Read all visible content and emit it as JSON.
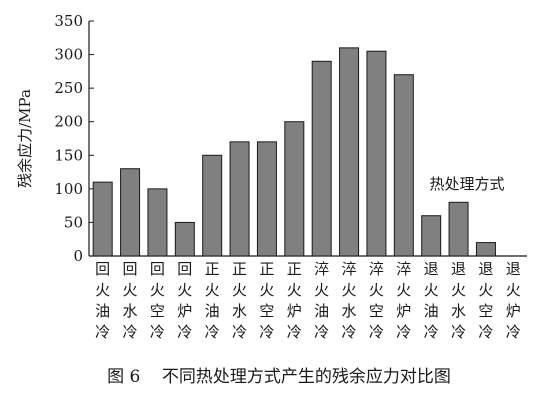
{
  "caption": "图 6    不同热处理方式产生的残余应力对比图",
  "chart_data": {
    "type": "bar",
    "ylabel": "残余应力/MPa",
    "legend_label": "热处理方式",
    "ylim": [
      0,
      350
    ],
    "yticks": [
      0,
      50,
      100,
      150,
      200,
      250,
      300,
      350
    ],
    "grid": false,
    "categories": [
      "回火油冷",
      "回火水冷",
      "回火空冷",
      "回火炉冷",
      "正火油冷",
      "正火水冷",
      "正火空冷",
      "正火炉冷",
      "淬火油冷",
      "淬火水冷",
      "淬火空冷",
      "淬火炉冷",
      "退火油冷",
      "退火水冷",
      "退火空冷",
      "退火炉冷"
    ],
    "values": [
      110,
      130,
      100,
      50,
      150,
      170,
      170,
      200,
      290,
      310,
      305,
      270,
      60,
      80,
      20,
      0
    ],
    "bar_color": "#808080"
  }
}
